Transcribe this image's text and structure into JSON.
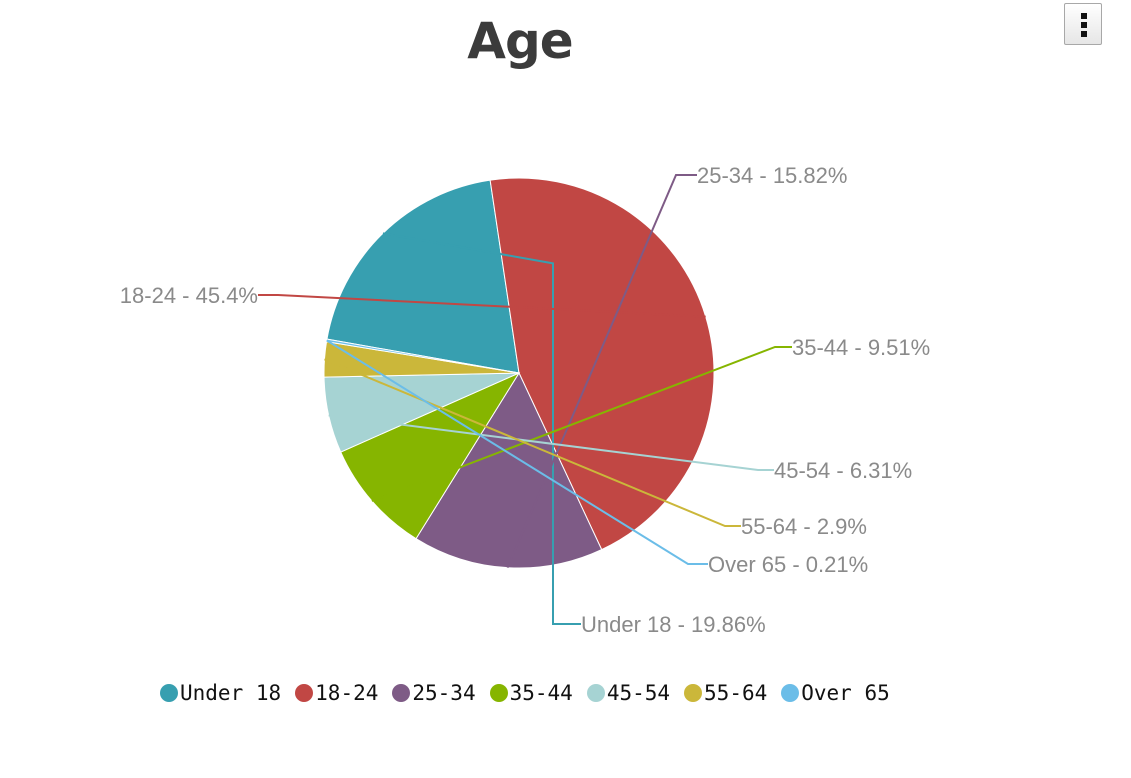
{
  "chart_data": {
    "type": "pie",
    "title": "Age",
    "start_angle_deg": 190,
    "slices": [
      {
        "name": "Under 18",
        "value": 19.86,
        "label": "Under 18 - 19.86%",
        "color": "#379fb0"
      },
      {
        "name": "18-24",
        "value": 45.4,
        "label": "18-24 - 45.4%",
        "color": "#c14744"
      },
      {
        "name": "25-34",
        "value": 15.82,
        "label": "25-34 - 15.82%",
        "color": "#7e5b86"
      },
      {
        "name": "35-44",
        "value": 9.51,
        "label": "35-44 - 9.51%",
        "color": "#86b500"
      },
      {
        "name": "45-54",
        "value": 6.31,
        "label": "45-54 - 6.31%",
        "color": "#a6d3d3"
      },
      {
        "name": "55-64",
        "value": 2.9,
        "label": "55-64 - 2.9%",
        "color": "#cbb73a"
      },
      {
        "name": "Over 65",
        "value": 0.21,
        "label": "Over 65 - 0.21%",
        "color": "#6bbde8"
      }
    ],
    "legend_position": "bottom-left"
  },
  "menu": {
    "icon": "vertical-ellipsis-icon"
  }
}
